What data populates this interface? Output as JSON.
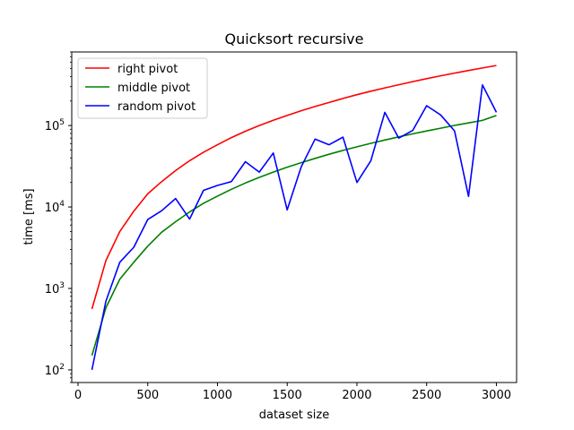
{
  "chart_data": {
    "type": "line",
    "title": "Quicksort recursive",
    "xlabel": "dataset size",
    "ylabel": "time [ms]",
    "xlim": [
      -45,
      3145
    ],
    "ylim": [
      70,
      800000
    ],
    "yscale": "log",
    "xticks": [
      0,
      500,
      1000,
      1500,
      2000,
      2500,
      3000
    ],
    "yticks": [
      {
        "value": 100,
        "base": "10",
        "exp": "2"
      },
      {
        "value": 1000,
        "base": "10",
        "exp": "3"
      },
      {
        "value": 10000,
        "base": "10",
        "exp": "4"
      },
      {
        "value": 100000,
        "base": "10",
        "exp": "5"
      }
    ],
    "grid": false,
    "legend_position": "top-left",
    "x": [
      100,
      200,
      300,
      400,
      500,
      600,
      700,
      800,
      900,
      1000,
      1100,
      1200,
      1300,
      1400,
      1500,
      1600,
      1700,
      1800,
      1900,
      2000,
      2100,
      2200,
      2300,
      2400,
      2500,
      2600,
      2700,
      2800,
      2900,
      3000
    ],
    "series": [
      {
        "name": "right pivot",
        "color": "#ff0000",
        "values": [
          560,
          2200,
          5000,
          8900,
          14500,
          20500,
          28000,
          37000,
          47000,
          58000,
          71000,
          85000,
          100000,
          116000,
          133000,
          152000,
          171000,
          192000,
          215000,
          239000,
          264000,
          290000,
          317000,
          346000,
          376000,
          408000,
          440000,
          474000,
          509000,
          546000
        ]
      },
      {
        "name": "middle pivot",
        "color": "#008000",
        "values": [
          150,
          580,
          1300,
          2100,
          3300,
          4900,
          6600,
          8700,
          11100,
          13600,
          16500,
          19700,
          23100,
          26800,
          30800,
          35000,
          39500,
          44400,
          49500,
          54800,
          60500,
          66400,
          72600,
          79100,
          85800,
          92800,
          100200,
          107700,
          115600,
          133000
        ]
      },
      {
        "name": "random pivot",
        "color": "#0000ff",
        "values": [
          100,
          700,
          2100,
          3200,
          7000,
          9000,
          12700,
          7100,
          16000,
          18400,
          20500,
          36000,
          26800,
          46000,
          9200,
          31000,
          68000,
          58000,
          72000,
          20000,
          37000,
          145000,
          70000,
          87000,
          175000,
          135000,
          86000,
          13500,
          315000,
          145000
        ]
      }
    ]
  }
}
